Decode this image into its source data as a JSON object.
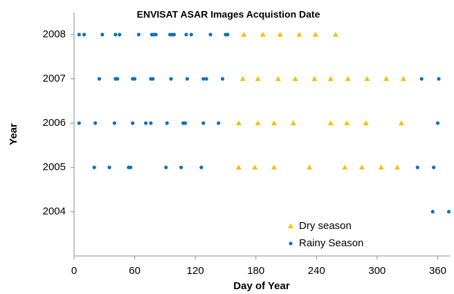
{
  "chart_data": {
    "type": "scatter",
    "title": "ENVISAT ASAR Images Acquistion Date",
    "x_label": "Day of Year",
    "y_label": "Year",
    "xlim": [
      0,
      372
    ],
    "xticks": [
      0,
      60,
      120,
      180,
      240,
      300,
      360
    ],
    "ylim": [
      2003,
      2008.5
    ],
    "yticks": [
      2004,
      2005,
      2006,
      2007,
      2008
    ],
    "legend": "lower right",
    "series": [
      {
        "name": "Dry season",
        "color": "#f2c200",
        "marker": "triangle",
        "x": [
          168,
          187,
          204,
          223,
          239,
          259,
          167,
          182,
          202,
          219,
          238,
          254,
          271,
          290,
          309,
          326,
          163,
          182,
          198,
          217,
          254,
          270,
          289,
          324,
          163,
          179,
          198,
          233,
          268,
          285,
          304,
          320
        ],
        "y": [
          2008,
          2008,
          2008,
          2008,
          2008,
          2008,
          2007,
          2007,
          2007,
          2007,
          2007,
          2007,
          2007,
          2007,
          2007,
          2007,
          2006,
          2006,
          2006,
          2006,
          2006,
          2006,
          2006,
          2006,
          2005,
          2005,
          2005,
          2005,
          2005,
          2005,
          2005,
          2005
        ]
      },
      {
        "name": "Rainy Season",
        "color": "#0d70b8",
        "marker": "circle",
        "x": [
          5,
          10,
          28,
          41,
          45,
          64,
          77,
          79,
          81,
          95,
          97,
          99,
          111,
          116,
          135,
          150,
          152,
          25,
          41,
          43,
          58,
          60,
          76,
          78,
          96,
          112,
          128,
          131,
          147,
          344,
          361,
          5,
          21,
          40,
          58,
          71,
          76,
          92,
          108,
          110,
          128,
          143,
          360,
          20,
          35,
          54,
          56,
          91,
          106,
          126,
          340,
          356,
          355,
          371
        ],
        "y": [
          2008,
          2008,
          2008,
          2008,
          2008,
          2008,
          2008,
          2008,
          2008,
          2008,
          2008,
          2008,
          2008,
          2008,
          2008,
          2008,
          2008,
          2007,
          2007,
          2007,
          2007,
          2007,
          2007,
          2007,
          2007,
          2007,
          2007,
          2007,
          2007,
          2007,
          2007,
          2006,
          2006,
          2006,
          2006,
          2006,
          2006,
          2006,
          2006,
          2006,
          2006,
          2006,
          2006,
          2005,
          2005,
          2005,
          2005,
          2005,
          2005,
          2005,
          2005,
          2005,
          2004,
          2004
        ]
      }
    ]
  }
}
